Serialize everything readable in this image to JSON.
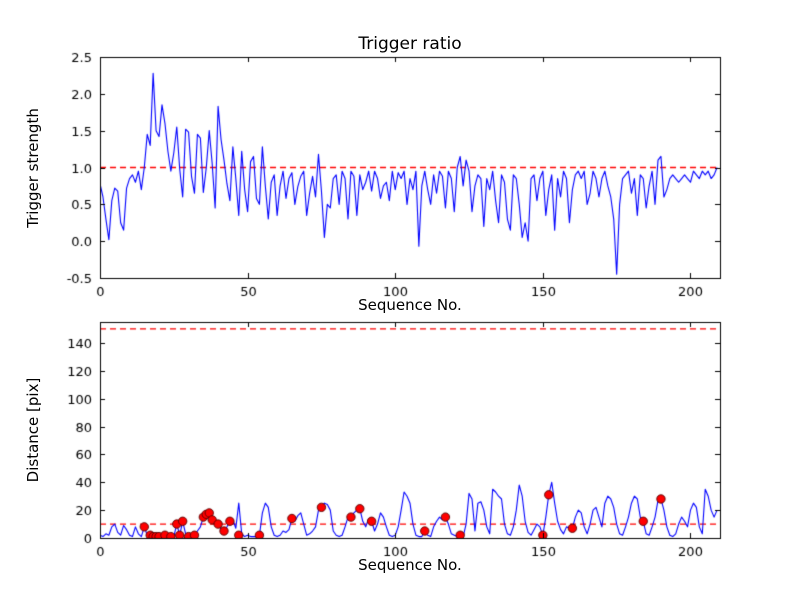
{
  "figure": {
    "background": "#ffffff"
  },
  "chart_data": [
    {
      "type": "line",
      "title": "Trigger ratio",
      "xlabel": "Sequence No.",
      "ylabel": "Trigger strength",
      "xlim": [
        0,
        210
      ],
      "ylim": [
        -0.5,
        2.5
      ],
      "xtick_values": [
        0,
        50,
        100,
        150,
        200
      ],
      "xtick_labels": [
        "0",
        "50",
        "100",
        "150",
        "200"
      ],
      "ytick_values": [
        -0.5,
        0.0,
        0.5,
        1.0,
        1.5,
        2.0,
        2.5
      ],
      "ytick_labels": [
        "-0.5",
        "0.0",
        "0.5",
        "1.0",
        "1.5",
        "2.0",
        "2.5"
      ],
      "line_color": "#0000ff",
      "threshold_lines": [
        {
          "y": 1.0,
          "color": "#ff0000",
          "style": "dashed"
        }
      ],
      "values": [
        0.78,
        0.6,
        0.3,
        0.02,
        0.55,
        0.72,
        0.68,
        0.25,
        0.15,
        0.72,
        0.85,
        0.9,
        0.8,
        0.95,
        0.7,
        1.0,
        1.45,
        1.3,
        2.28,
        1.5,
        1.42,
        1.85,
        1.6,
        1.22,
        0.95,
        1.2,
        1.55,
        0.98,
        0.6,
        1.52,
        1.48,
        0.88,
        0.65,
        1.45,
        1.4,
        0.66,
        1.0,
        1.5,
        1.05,
        0.45,
        1.83,
        1.38,
        1.1,
        0.78,
        0.55,
        1.28,
        0.85,
        0.35,
        1.22,
        0.7,
        0.4,
        1.08,
        1.15,
        0.58,
        0.5,
        1.28,
        0.75,
        0.3,
        0.8,
        0.9,
        0.35,
        0.75,
        0.95,
        0.58,
        0.85,
        0.93,
        0.5,
        0.74,
        0.88,
        0.95,
        0.35,
        0.65,
        0.88,
        0.6,
        1.18,
        0.68,
        0.05,
        0.5,
        0.45,
        0.85,
        0.9,
        0.5,
        0.95,
        0.85,
        0.3,
        0.95,
        0.88,
        0.35,
        0.9,
        0.7,
        0.8,
        0.95,
        0.68,
        0.95,
        0.85,
        0.58,
        0.75,
        0.8,
        0.55,
        0.95,
        0.7,
        0.93,
        0.85,
        0.95,
        0.5,
        0.85,
        0.7,
        0.95,
        -0.07,
        0.75,
        0.95,
        0.7,
        0.5,
        0.9,
        0.65,
        0.95,
        0.88,
        0.45,
        0.95,
        0.85,
        0.4,
        1.0,
        1.15,
        0.75,
        1.1,
        0.95,
        0.4,
        0.75,
        0.9,
        0.85,
        0.2,
        0.85,
        0.7,
        0.95,
        0.55,
        0.25,
        0.9,
        0.8,
        0.3,
        0.15,
        0.9,
        0.85,
        0.5,
        0.05,
        0.25,
        0.0,
        0.85,
        0.9,
        0.55,
        0.85,
        0.95,
        0.35,
        0.7,
        0.9,
        0.15,
        0.85,
        0.6,
        0.95,
        0.85,
        0.25,
        0.7,
        0.9,
        0.95,
        0.85,
        0.95,
        0.5,
        0.65,
        0.95,
        0.85,
        0.6,
        0.85,
        0.95,
        0.75,
        0.6,
        0.3,
        -0.45,
        0.5,
        0.85,
        0.9,
        0.95,
        0.65,
        0.85,
        0.35,
        0.9,
        0.85,
        0.45,
        0.75,
        0.95,
        0.5,
        1.1,
        1.15,
        0.6,
        0.7,
        0.85,
        0.9,
        0.85,
        0.8,
        0.85,
        0.9,
        0.85,
        0.8,
        0.95,
        0.9,
        0.85,
        0.95,
        0.9,
        0.95,
        0.85,
        0.9,
        1.0
      ]
    },
    {
      "type": "line+scatter",
      "title": "",
      "xlabel": "Sequence No.",
      "ylabel": "Distance [pix]",
      "xlim": [
        0,
        210
      ],
      "ylim": [
        0,
        155
      ],
      "xtick_values": [
        0,
        50,
        100,
        150,
        200
      ],
      "xtick_labels": [
        "0",
        "50",
        "100",
        "150",
        "200"
      ],
      "ytick_values": [
        0,
        20,
        40,
        60,
        80,
        100,
        120,
        140
      ],
      "ytick_labels": [
        "0",
        "20",
        "40",
        "60",
        "80",
        "100",
        "120",
        "140"
      ],
      "line_color": "#0000ff",
      "threshold_lines": [
        {
          "y": 150,
          "color": "#ff0000",
          "style": "dashed"
        },
        {
          "y": 10,
          "color": "#ff0000",
          "style": "dashed"
        }
      ],
      "values": [
        2,
        1,
        3,
        2,
        8,
        10,
        4,
        2,
        9,
        6,
        2,
        1,
        8,
        3,
        1,
        8,
        2,
        1,
        1,
        1,
        1,
        2,
        2,
        1,
        1,
        1,
        10,
        2,
        12,
        3,
        1,
        2,
        2,
        5,
        8,
        15,
        17,
        18,
        13,
        9,
        10,
        6,
        5,
        8,
        12,
        13,
        7,
        25,
        3,
        1,
        2,
        1,
        1,
        1,
        2,
        18,
        25,
        22,
        8,
        2,
        1,
        2,
        5,
        4,
        6,
        14,
        12,
        16,
        18,
        10,
        2,
        3,
        5,
        8,
        20,
        22,
        25,
        24,
        20,
        5,
        2,
        1,
        2,
        8,
        15,
        15,
        18,
        20,
        21,
        12,
        8,
        14,
        12,
        5,
        10,
        18,
        15,
        8,
        2,
        1,
        2,
        8,
        20,
        33,
        30,
        25,
        10,
        2,
        1,
        1,
        5,
        2,
        1,
        8,
        12,
        15,
        13,
        15,
        10,
        3,
        2,
        1,
        2,
        1,
        10,
        32,
        28,
        5,
        25,
        26,
        20,
        8,
        3,
        35,
        33,
        30,
        28,
        10,
        3,
        2,
        8,
        20,
        38,
        30,
        12,
        4,
        2,
        6,
        10,
        8,
        2,
        15,
        31,
        40,
        25,
        12,
        6,
        3,
        8,
        7,
        7,
        15,
        20,
        18,
        8,
        3,
        10,
        20,
        22,
        15,
        8,
        25,
        30,
        28,
        22,
        10,
        3,
        2,
        8,
        15,
        25,
        30,
        28,
        15,
        12,
        3,
        2,
        8,
        15,
        27,
        28,
        20,
        8,
        2,
        1,
        3,
        10,
        15,
        12,
        8,
        20,
        25,
        22,
        8,
        3,
        35,
        30,
        20,
        15,
        20
      ],
      "scatter": {
        "marker": "circle",
        "color": "#ff0000",
        "x": [
          15,
          17,
          18,
          19,
          20,
          22,
          24,
          26,
          27,
          28,
          30,
          32,
          35,
          36,
          37,
          38,
          40,
          42,
          44,
          47,
          54,
          65,
          75,
          85,
          88,
          92,
          110,
          117,
          122,
          150,
          152,
          160,
          184,
          190
        ],
        "y": [
          8,
          2,
          1,
          1,
          1,
          2,
          1,
          10,
          2,
          12,
          1,
          2,
          15,
          17,
          18,
          13,
          10,
          5,
          12,
          2,
          2,
          14,
          22,
          15,
          21,
          12,
          5,
          15,
          2,
          2,
          31,
          7,
          12,
          28
        ]
      }
    }
  ]
}
